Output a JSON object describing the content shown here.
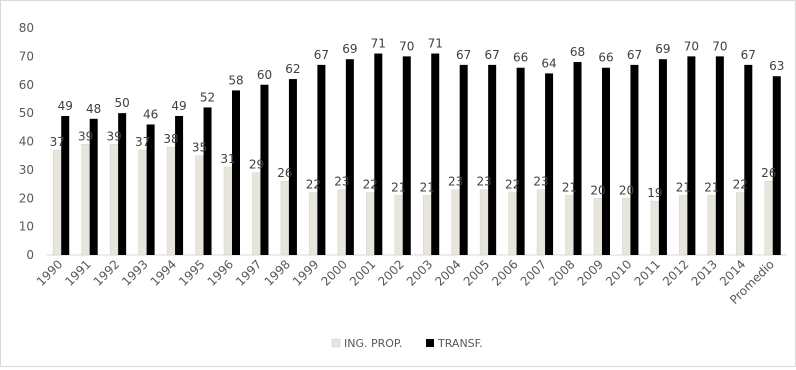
{
  "chart_data": {
    "type": "bar",
    "categories": [
      "1990",
      "1991",
      "1992",
      "1993",
      "1994",
      "1995",
      "1996",
      "1997",
      "1998",
      "1999",
      "2000",
      "2001",
      "2002",
      "2003",
      "2004",
      "2005",
      "2006",
      "2007",
      "2008",
      "2009",
      "2010",
      "2011",
      "2012",
      "2013",
      "2014",
      "Promedio"
    ],
    "series": [
      {
        "name": "ING. PROP.",
        "color": "#e8e6dc",
        "values": [
          37,
          39,
          39,
          37,
          38,
          35,
          31,
          29,
          26,
          22,
          23,
          22,
          21,
          21,
          23,
          23,
          22,
          23,
          21,
          20,
          20,
          19,
          21,
          21,
          22,
          26
        ]
      },
      {
        "name": "TRANSF.",
        "color": "#000000",
        "values": [
          49,
          48,
          50,
          46,
          49,
          52,
          58,
          60,
          62,
          67,
          69,
          71,
          70,
          71,
          67,
          67,
          66,
          64,
          68,
          66,
          67,
          69,
          70,
          70,
          67,
          63
        ]
      }
    ],
    "ylim": [
      0,
      80
    ],
    "yticks": [
      0,
      10,
      20,
      30,
      40,
      50,
      60,
      70,
      80
    ],
    "grid": false,
    "legend_position": "bottom-center",
    "title": "",
    "xlabel": "",
    "ylabel": ""
  }
}
